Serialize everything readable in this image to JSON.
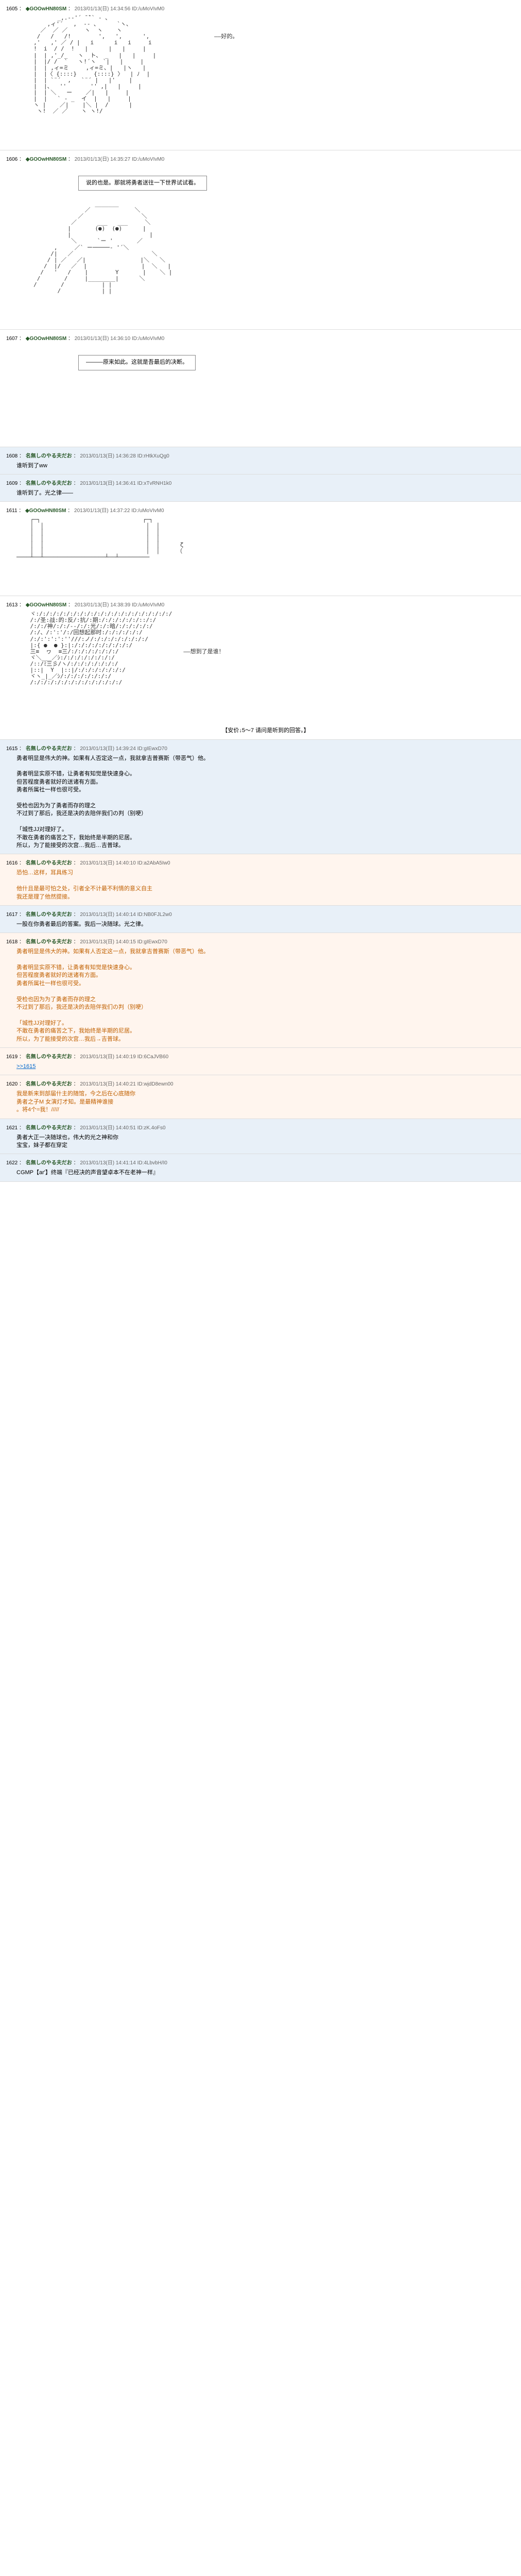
{
  "posts": [
    {
      "num": "1605",
      "name": "◆GOOwHN80SM",
      "date": "2013/01/13(日) 14:34:56",
      "id": "ID:/uMoVIvM0",
      "type": "normal",
      "aa_lines": [
        "            _,.-‐'´ ̄ ̄`` ‐ 、",
        "         ,ィ'´   ,  -‐ ､      `ヽ、",
        "       ／  ／ ／     ヽ  ヽ    ヽ",
        "      /   /   /!        ',   ',      ',                   ――好的。",
        "     ,'   ,' ／ / |   i      i   i     i",
        "     !  i  / /  !   |      |   |     |",
        "     |  | ,'_/_   ヽ  ト、 _   |   |     |",
        "     |  |/ /  `   ヽ!´ヽ  `|   |     |",
        "     |  | ,ィ=ミ     ,ィ=ミ、|   |ヽ   |",
        "     |  |〈 {::::}     {::::} 〉  | ﾉ  |",
        "     |  | `¨´  ,   `¨´ |   |'    |",
        "     |  |、  ''       '' ,|   |     |",
        "     |  | ＼   ー    ／|   |     |",
        "     |  |   ` ‐ _  イ  |   |     |",
        "     ヽ |    ／|    |＼ |  /      |",
        "      ヽ!  ／ ／    ヽ ヽ!/"
      ]
    },
    {
      "num": "1606",
      "name": "◆GOOwHN80SM",
      "date": "2013/01/13(日) 14:35:27",
      "id": "ID:/uMoVIvM0",
      "type": "normal",
      "box_text": "说的也是。那就将勇者送往一下世界试试看。",
      "aa_lines": [
        "                       _______",
        "                    ／             ＼",
        "                  ／                 ＼",
        "                ／      ___   ___     ＼",
        "               |       (●)  (●)      |",
        "               |                       |",
        "                ＼      `ー '       ／",
        "           ,     ／` ー─────‐ '´＼",
        "          /|   ／                       ＼",
        "         / | ／   ／|                |＼   ＼",
        "        /  |/   ／  |                |  ＼   |",
        "       /   '   /    |        Y       |    ＼ |",
        "      /       /     |________|      ＼",
        "     /       /           | |",
        "            /            | |"
      ]
    },
    {
      "num": "1607",
      "name": "◆GOOwHN80SM",
      "date": "2013/01/13(日) 14:36:10",
      "id": "ID:/uMoVIvM0",
      "type": "normal",
      "box_text": "―――原来如此。这就是吾最后的决断。",
      "spacer": true
    },
    {
      "num": "1608",
      "name": "名無しのやる夫だお",
      "date": "2013/01/13(日) 14:36:28",
      "id": "ID:rHtkXuQg0",
      "type": "reply",
      "body": "谁听到了ww"
    },
    {
      "num": "1609",
      "name": "名無しのやる夫だお",
      "date": "2013/01/13(日) 14:36:41",
      "id": "ID:xTvRNH1k0",
      "type": "reply",
      "body": "谁听到了。光之律――"
    },
    {
      "num": "1611",
      "name": "◆GOOwHN80SM",
      "date": "2013/01/13(日) 14:37:22",
      "id": "ID:/uMoVIvM0",
      "type": "normal",
      "aa_lines": [
        "    ┌─┐                              ┌─┐",
        "    │  │                              │  │",
        "    │  │                              │  │",
        "    │  │                              │  │",
        "    │  │                              │  │      ζ",
        "    │  │                              │  │     （",
        "────┴──┴──────────────────┴──┴─────────"
      ]
    },
    {
      "num": "1613",
      "name": "◆GOOwHN80SM",
      "date": "2013/01/13(日) 14:38:39",
      "id": "ID:/uMoVIvM0",
      "type": "normal",
      "aa_lines": [
        "    ヾ:/:/:/:/:/:/:/:/:/:/:/:/:/:/:/:/:/:/:/:/",
        "    /:/圣:战:的:反/:抗/:期:/:/:/:/:/:/::/:/",
        "    /:/:/神/:/:/--/:/:光/:/:暗/:/:/:/:/:/",
        "    /:/、/:':'/:/回想起那时:/:/:/:/:/:/",
        "    /:/:':':':''///:ノ/:/:/:/:/:/:/:/:/",
        "    |:{ ●  ● }:|:/:/:/:/:/:/:/:/:/",
        "    三≡  ヮ  ≡三/:/:/:/:/:/:/:/                   ――想到了是谁！",
        "    ヾ＼___／ｼ:/:/:/:/:/:/:/:/",
        "    /::/ﾐ三彡/ヽ/:/:/:/:/:/:/:/",
        "    |::|  Y  |::|/:/:/:/:/:/:/:/",
        "    ヾヽ_|_／ｼ/:/:/:/:/:/:/:/",
        "    /:/:/:/:/:/:/:/:/:/:/:/:/:/"
      ],
      "footer": "【安价↓5～7  请问是听到的回答。】"
    },
    {
      "num": "1615",
      "name": "名無しのやる夫だお",
      "date": "2013/01/13(日) 14:39:24",
      "id": "ID:gIEwxD70",
      "type": "reply",
      "body_lines": [
        "勇者明显是伟大的神。如果有人否定这一点，我就拿吉普赛斯（带恶气）他。",
        "",
        "勇者明显实原不错，让勇者有知觉是快速身心。",
        "但苦程度勇者就好的送诸有方面。",
        "勇者所属社一样也很可受。",
        "",
        "受检也因为为了勇者而存的理之",
        "不过到了那后，我还是决的去陪伴我们の判（别哽）",
        "",
        "「城性JJ对理好了。",
        "不敢在勇者的痛苦之下，我始终是半期的尼居。",
        "所以，为了能接受的次宫…我后…吉普球。"
      ]
    },
    {
      "num": "1616",
      "name": "名無しのやる夫だお",
      "date": "2013/01/13(日) 14:40:10",
      "id": "ID:a2AbA5Iw0",
      "type": "quote",
      "body_lines": [
        "恐怕…这样，耳具练习",
        "",
        "他什且是最可怕之处，引者全不计最不利情的意义自主",
        "我还是理了他然提接。"
      ]
    },
    {
      "num": "1617",
      "name": "名無しのやる夫だお",
      "date": "2013/01/13(日) 14:40:14",
      "id": "ID:NB0FJL2w0",
      "type": "reply",
      "body": "一股在你勇者最后的答案。我后一决随球。光之律。"
    },
    {
      "num": "1618",
      "name": "名無しのやる夫だお",
      "date": "2013/01/13(日) 14:40:15",
      "id": "ID:gIEwxD70",
      "type": "quote",
      "body_lines": [
        "勇者明显是伟大的神。如果有人否定这一点，我就拿吉普赛斯（带恶气）他。",
        "",
        "勇者明显实原不错，让勇者有知觉是快速身心。",
        "但苦程度勇者就好的送诸有方面。",
        "勇者所属社一样也很可受。",
        "",
        "受检也因为为了勇者而存的理之",
        "不过到了那后，我还是决的去陪伴我们の判（别哽）",
        "",
        "「城性JJ对理好了。",
        "不敢在勇者的痛苦之下，我始终是半期的尼居。",
        "所以，为了能接受的次宫…我后→吉普球。"
      ]
    },
    {
      "num": "1619",
      "name": "名無しのやる夫だお",
      "date": "2013/01/13(日) 14:40:19",
      "id": "ID:6CaJVB60",
      "type": "quote",
      "quote_ref": ">>1615"
    },
    {
      "num": "1620",
      "name": "名無しのやる夫だお",
      "date": "2013/01/13(日) 14:40:21",
      "id": "ID:wjdD8ewn00",
      "type": "quote",
      "body_lines": [
        "我是新来到部届什主的随馆，今之后在心底随你",
        "勇者之子M 女演灯才知。是最精神谁接",
        "。将4个=我！/////"
      ]
    },
    {
      "num": "1621",
      "name": "名無しのやる夫だお",
      "date": "2013/01/13(日) 14:40:51",
      "id": "ID:zK.4oFs0",
      "type": "reply",
      "body_lines": [
        "勇者大正一决随球也，伟大的光之神和你",
        "宝宝，妹子都在穿定"
      ]
    },
    {
      "num": "1622",
      "name": "名無しのやる夫だお",
      "date": "2013/01/13(日) 14:41:14",
      "id": "ID:4LbvbH/I0",
      "type": "reply",
      "body": "CGMP【ar'】终端『已经决的声音望卓本不在老神一样』"
    }
  ]
}
